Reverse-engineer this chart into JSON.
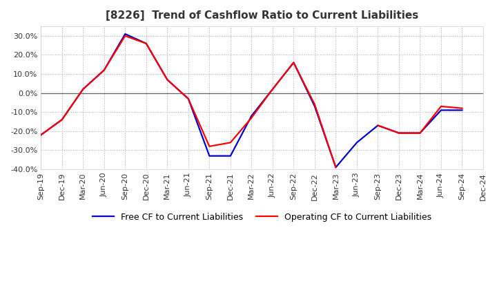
{
  "title": "[8226]  Trend of Cashflow Ratio to Current Liabilities",
  "x_labels": [
    "Sep-19",
    "Dec-19",
    "Mar-20",
    "Jun-20",
    "Sep-20",
    "Dec-20",
    "Mar-21",
    "Jun-21",
    "Sep-21",
    "Dec-21",
    "Mar-22",
    "Jun-22",
    "Sep-22",
    "Dec-22",
    "Mar-23",
    "Jun-23",
    "Sep-23",
    "Dec-23",
    "Mar-24",
    "Jun-24",
    "Sep-24",
    "Dec-24"
  ],
  "operating_cf": [
    -22,
    -14,
    2,
    12,
    30,
    26,
    7,
    -3,
    -28,
    -26,
    -13,
    2,
    16,
    -6,
    -39,
    null,
    -17,
    -21,
    -21,
    -7,
    -8,
    null
  ],
  "free_cf": [
    -22,
    -14,
    2,
    12,
    31,
    26,
    7,
    -3,
    -33,
    -33,
    -12,
    2,
    16,
    -7,
    -39,
    -26,
    -17,
    -21,
    -21,
    -9,
    -9,
    null
  ],
  "operating_color": "#ff0000",
  "free_color": "#0000cc",
  "background_color": "#ffffff",
  "grid_color": "#aaaaaa",
  "ylim": [
    -40,
    35
  ],
  "yticks": [
    -40,
    -30,
    -20,
    -10,
    0,
    10,
    20,
    30
  ],
  "title_fontsize": 11,
  "legend_fontsize": 9,
  "tick_fontsize": 8
}
